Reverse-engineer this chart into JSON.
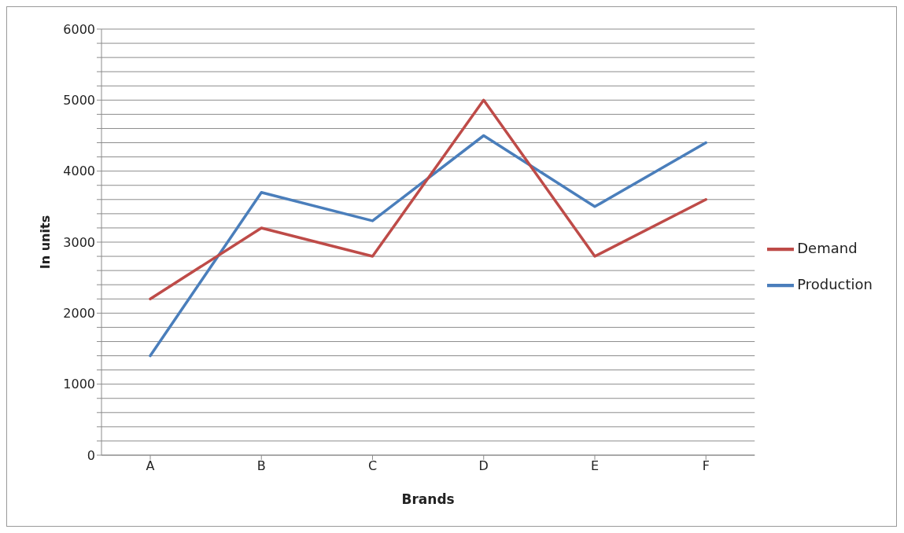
{
  "chart_data": {
    "type": "line",
    "xlabel": "Brands",
    "ylabel": "In units",
    "categories": [
      "A",
      "B",
      "C",
      "D",
      "E",
      "F"
    ],
    "series": [
      {
        "name": "Production",
        "color": "#4a7ebb",
        "values": [
          1400,
          3700,
          3300,
          4500,
          3500,
          4400
        ]
      },
      {
        "name": "Demand",
        "color": "#be4b48",
        "values": [
          2200,
          3200,
          2800,
          5000,
          2800,
          3600
        ]
      }
    ],
    "ylim": [
      0,
      6000
    ],
    "yticks": [
      0,
      {
        "value": 200,
        "label": null
      },
      {
        "value": 400,
        "label": null
      },
      {
        "value": 600,
        "label": null
      },
      {
        "value": 800,
        "label": null
      },
      1000,
      {
        "value": 1200,
        "label": null
      },
      {
        "value": 1400,
        "label": null
      },
      {
        "value": 1600,
        "label": null
      },
      {
        "value": 1800,
        "label": null
      },
      2000,
      {
        "value": 2200,
        "label": null
      },
      {
        "value": 2400,
        "label": null
      },
      {
        "value": 2600,
        "label": null
      },
      {
        "value": 2800,
        "label": null
      },
      3000,
      {
        "value": 3200,
        "label": null
      },
      {
        "value": 3400,
        "label": null
      },
      {
        "value": 3600,
        "label": null
      },
      {
        "value": 3800,
        "label": null
      },
      4000,
      {
        "value": 4200,
        "label": null
      },
      {
        "value": 4400,
        "label": null
      },
      {
        "value": 4600,
        "label": null
      },
      {
        "value": 4800,
        "label": null
      },
      5000,
      {
        "value": 5200,
        "label": null
      },
      {
        "value": 5400,
        "label": null
      },
      {
        "value": 5600,
        "label": null
      },
      {
        "value": 5800,
        "label": null
      },
      6000
    ],
    "grid": "y",
    "legend": "right",
    "marker": "none",
    "line_style": "solid"
  }
}
